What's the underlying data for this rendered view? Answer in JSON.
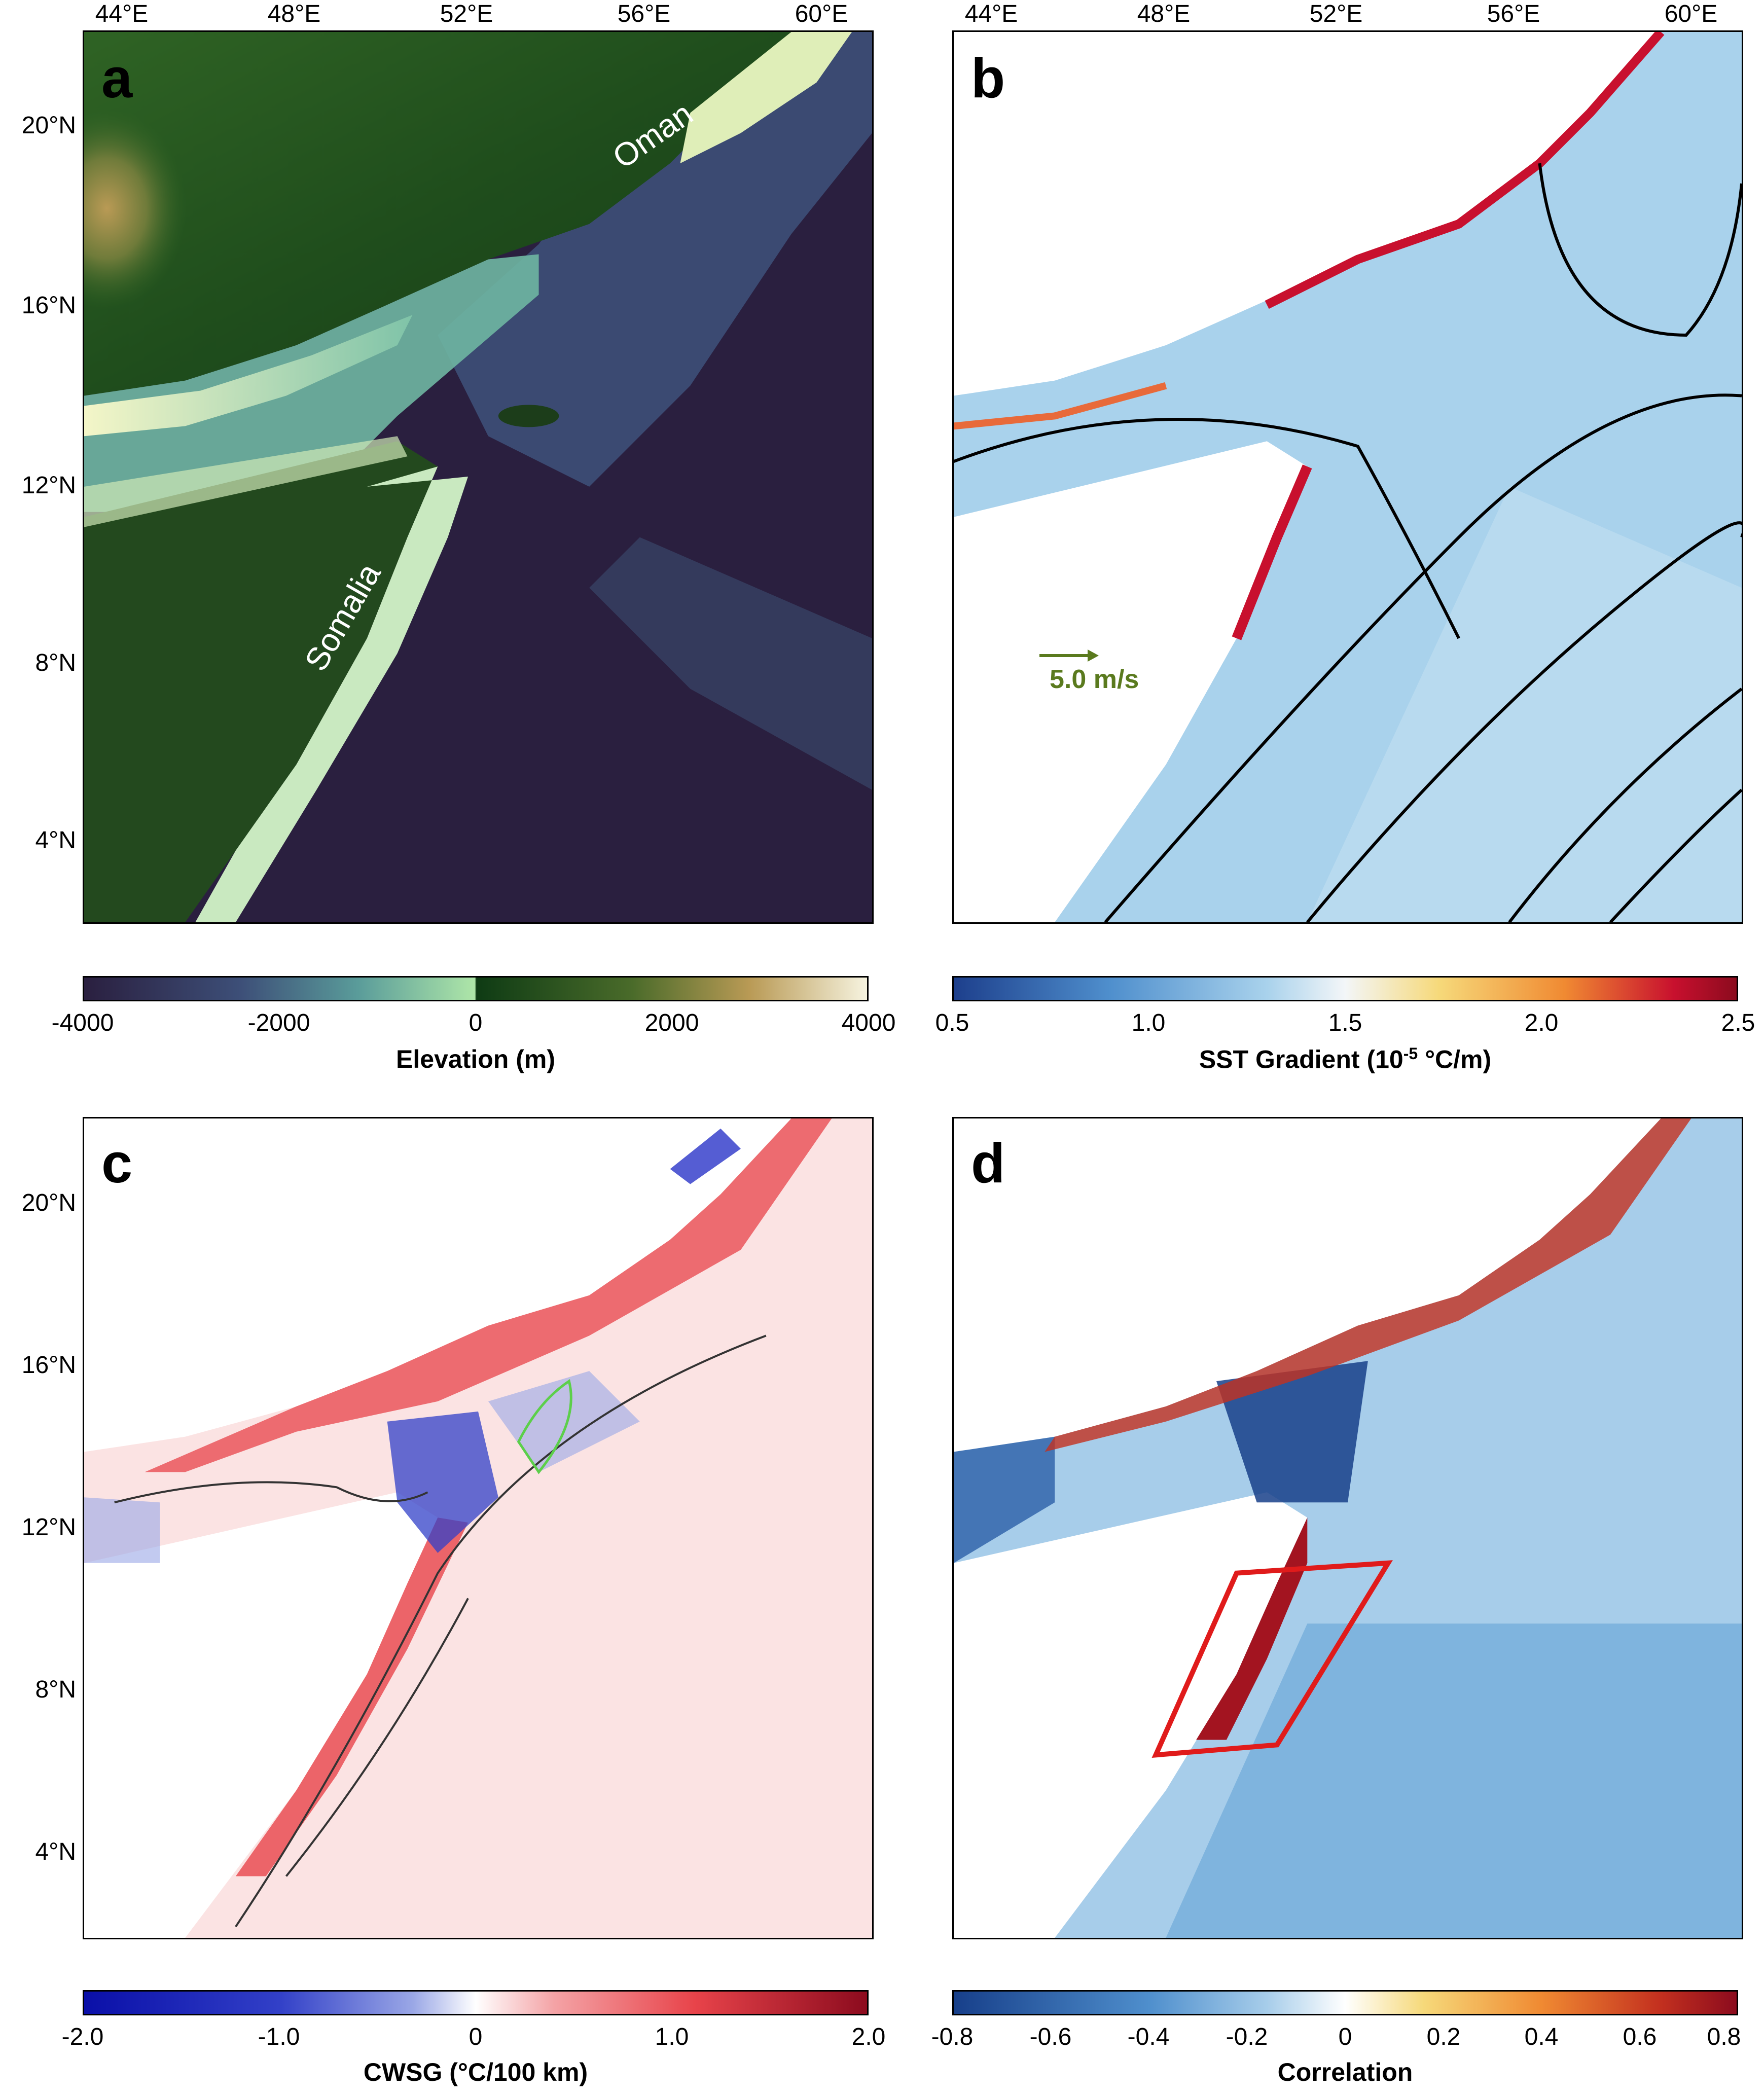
{
  "lon_ticks": [
    "44°E",
    "48°E",
    "52°E",
    "56°E",
    "60°E"
  ],
  "lat_ticks_ab": [
    "20°N",
    "16°N",
    "12°N",
    "8°N",
    "4°N"
  ],
  "lat_ticks_cd": [
    "20°N",
    "16°N",
    "12°N",
    "8°N",
    "4°N"
  ],
  "panel_a": {
    "label": "a",
    "place_oman": "Oman",
    "place_somalia": "Somalia",
    "colorbar": {
      "ticks": [
        "-4000",
        "-2000",
        "0",
        "2000",
        "4000"
      ],
      "title": "Elevation (m)"
    }
  },
  "panel_b": {
    "label": "b",
    "vector_scale": "5.0 m/s",
    "colorbar": {
      "ticks": [
        "0.5",
        "1.0",
        "1.5",
        "2.0",
        "2.5"
      ],
      "title_main": "SST Gradient (10",
      "title_sup": "-5",
      "title_end": " °C/m)"
    }
  },
  "panel_c": {
    "label": "c",
    "colorbar": {
      "ticks": [
        "-2.0",
        "-1.0",
        "0",
        "1.0",
        "2.0"
      ],
      "title": "CWSG (°C/100 km)"
    }
  },
  "panel_d": {
    "label": "d",
    "colorbar": {
      "ticks": [
        "-0.8",
        "-0.6",
        "-0.4",
        "-0.2",
        "0",
        "0.2",
        "0.4",
        "0.6",
        "0.8"
      ],
      "title": "Correlation"
    }
  },
  "colors": {
    "ocean_deep": "#2a1f3f",
    "land_low": "#1d4a1a",
    "sst_blue": "#a9d2ec",
    "red": "#c8102e",
    "vector_green": "#5a7a1e"
  }
}
